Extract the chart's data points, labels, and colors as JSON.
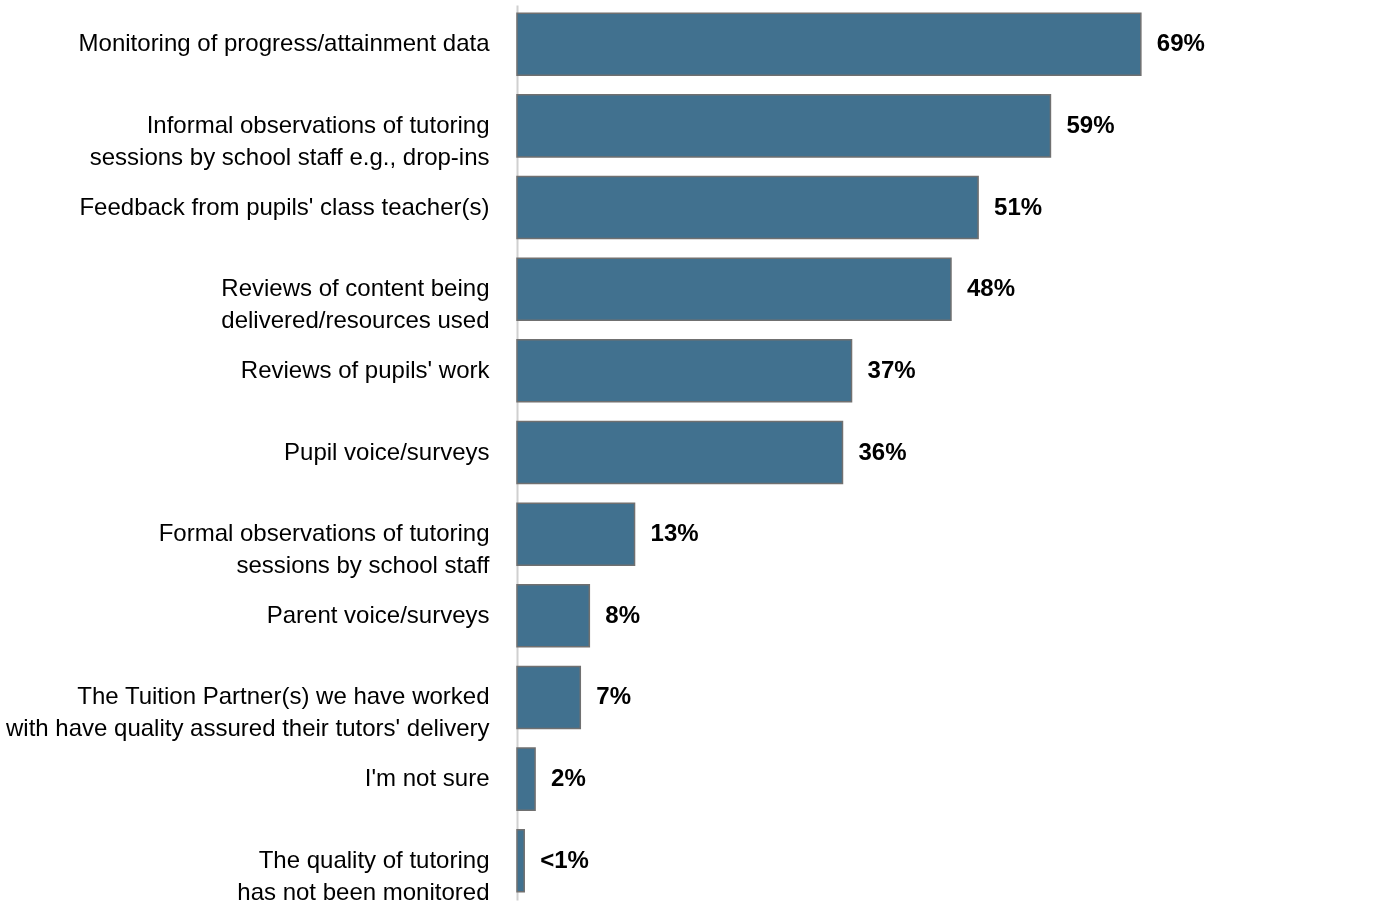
{
  "chart_data": {
    "type": "bar",
    "orientation": "horizontal",
    "categories": [
      "Monitoring of progress/attainment data",
      "Informal observations of tutoring\nsessions by school staff e.g., drop-ins",
      "Feedback from pupils' class teacher(s)",
      "Reviews of content being\ndelivered/resources used",
      "Reviews of pupils' work",
      "Pupil voice/surveys",
      "Formal observations of tutoring\nsessions by school staff",
      "Parent voice/surveys",
      "The Tuition Partner(s) we have worked\nwith have quality assured their tutors' delivery",
      "I'm not sure",
      "The quality of tutoring\nhas not been monitored"
    ],
    "values": [
      69,
      59,
      51,
      48,
      37,
      36,
      13,
      8,
      7,
      2,
      0.8
    ],
    "value_labels": [
      "69%",
      "59%",
      "51%",
      "48%",
      "37%",
      "36%",
      "13%",
      "8%",
      "7%",
      "2%",
      "<1%"
    ],
    "color": "#41718f",
    "grid": false
  }
}
